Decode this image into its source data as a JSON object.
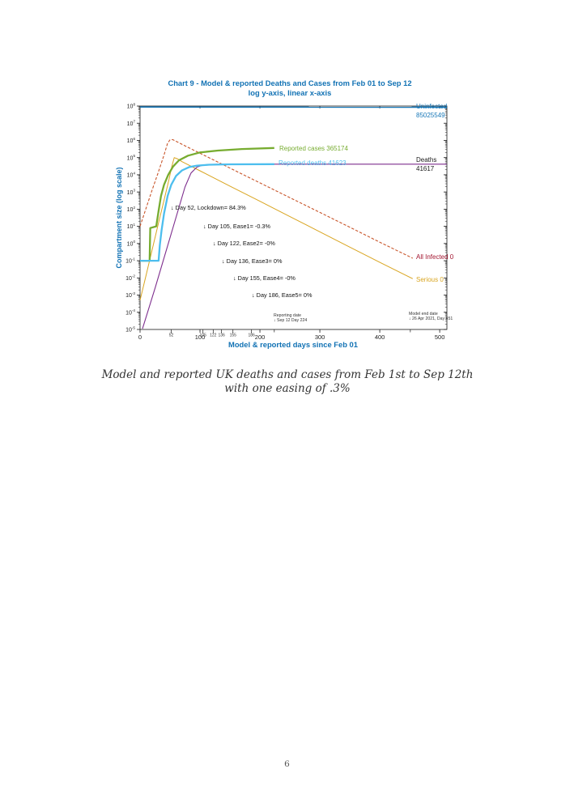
{
  "page": {
    "number": "6"
  },
  "caption": {
    "text": "Model and reported UK deaths and cases from Feb 1st to Sep 12th with one easing of .3%"
  },
  "chart_data": {
    "type": "line",
    "title": "Chart 9 - Model & reported Deaths and Cases from Feb 01 to Sep 12",
    "subtitle": "log y-axis, linear x-axis",
    "xlabel": "Model & reported days since Feb 01",
    "ylabel": "Compartment size (log scale)",
    "axis_text_color": "#1272b4",
    "tick_text_color": "#222222",
    "x_range": [
      0,
      512
    ],
    "log_range": [
      -5,
      8
    ],
    "x_ticks": [
      0,
      100,
      200,
      300,
      400,
      500
    ],
    "x_event_ticks": [
      52,
      105,
      122,
      136,
      155,
      186
    ],
    "x_extra_ticks": [
      224,
      451
    ],
    "y_tick_exponents": [
      8,
      7,
      6,
      5,
      4,
      3,
      2,
      1,
      0,
      -1,
      -2,
      -3,
      -4,
      -5
    ],
    "series": [
      {
        "id": "all-infected",
        "name": "All Infected",
        "end_value": 0,
        "color": "#c8552a",
        "width": 1.1,
        "dash": "3.5 2",
        "points": [
          [
            0,
            10
          ],
          [
            10,
            112
          ],
          [
            20,
            1260
          ],
          [
            30,
            12600
          ],
          [
            40,
            141000
          ],
          [
            46,
            708000
          ],
          [
            50,
            1070000
          ],
          [
            54,
            1122000
          ],
          [
            60,
            891000
          ],
          [
            80,
            398000
          ],
          [
            120,
            81000
          ],
          [
            160,
            16600
          ],
          [
            200,
            3390
          ],
          [
            250,
            468
          ],
          [
            300,
            65
          ],
          [
            350,
            8.9
          ],
          [
            400,
            1.2
          ],
          [
            455,
            0.14
          ]
        ]
      },
      {
        "id": "serious",
        "name": "Serious",
        "end_value": 0,
        "color": "#d9a521",
        "width": 1.0,
        "dash": "",
        "points": [
          [
            0,
            0.0005
          ],
          [
            10,
            0.014
          ],
          [
            20,
            0.41
          ],
          [
            30,
            12
          ],
          [
            40,
            330
          ],
          [
            48,
            4800
          ],
          [
            53,
            30000
          ],
          [
            57,
            100000
          ],
          [
            62,
            86000
          ],
          [
            70,
            58000
          ],
          [
            80,
            39000
          ],
          [
            100,
            17000
          ],
          [
            150,
            2200
          ],
          [
            200,
            290
          ],
          [
            250,
            37
          ],
          [
            300,
            4.8
          ],
          [
            350,
            0.62
          ],
          [
            400,
            0.08
          ],
          [
            455,
            0.009
          ]
        ]
      },
      {
        "id": "deaths-model",
        "name": "Deaths",
        "end_value": 41617,
        "color": "#7e2f8e",
        "width": 1.1,
        "dash": "",
        "points": [
          [
            4,
            1.1e-05
          ],
          [
            25,
            0.0025
          ],
          [
            45,
            0.56
          ],
          [
            60,
            33
          ],
          [
            75,
            1950
          ],
          [
            85,
            12600
          ],
          [
            95,
            28200
          ],
          [
            105,
            36500
          ],
          [
            120,
            40300
          ],
          [
            140,
            41300
          ],
          [
            180,
            41600
          ],
          [
            512,
            41617
          ]
        ]
      },
      {
        "id": "reported-cases",
        "name": "Reported cases",
        "end_value": 365174,
        "color": "#77ac30",
        "width": 2.3,
        "dash": "",
        "points": [
          [
            2,
            0.1
          ],
          [
            16,
            0.1
          ],
          [
            17,
            8
          ],
          [
            27,
            10
          ],
          [
            31,
            80
          ],
          [
            35,
            600
          ],
          [
            40,
            2600
          ],
          [
            47,
            10000
          ],
          [
            55,
            30000
          ],
          [
            65,
            70000
          ],
          [
            80,
            130000
          ],
          [
            100,
            200000
          ],
          [
            130,
            258000
          ],
          [
            170,
            315000
          ],
          [
            224,
            365174
          ]
        ]
      },
      {
        "id": "reported-deaths",
        "name": "Reported deaths",
        "end_value": 41623,
        "color": "#4dbeee",
        "width": 2.3,
        "dash": "",
        "points": [
          [
            0,
            0.1
          ],
          [
            31,
            0.1
          ],
          [
            33,
            0.8
          ],
          [
            36,
            6
          ],
          [
            40,
            55
          ],
          [
            46,
            600
          ],
          [
            52,
            2600
          ],
          [
            60,
            8500
          ],
          [
            70,
            18000
          ],
          [
            82,
            28000
          ],
          [
            95,
            34000
          ],
          [
            115,
            38500
          ],
          [
            150,
            40800
          ],
          [
            224,
            41623
          ]
        ]
      },
      {
        "id": "uninfected",
        "name": "Uninfected",
        "end_value": 85025549,
        "color": "#1878b8",
        "width": 1.6,
        "dash": "",
        "points": [
          [
            0,
            88000000
          ],
          [
            512,
            85025549
          ]
        ]
      }
    ],
    "annotations": [
      {
        "day": 52,
        "text": "↓ Day 52, Lockdown= 84.3%"
      },
      {
        "day": 105,
        "text": "↓ Day 105, Ease1= -0.3%"
      },
      {
        "day": 122,
        "text": "↓ Day 122, Ease2= -0%"
      },
      {
        "day": 136,
        "text": "↓ Day 136, Ease3= 0%"
      },
      {
        "day": 155,
        "text": "↓ Day 155, Ease4= -0%"
      },
      {
        "day": 186,
        "text": "↓ Day 186, Ease5= 0%"
      }
    ],
    "date_notes": [
      {
        "day": 224,
        "lines": [
          "Reporting date",
          "↓ Sep 12 Day 224"
        ]
      },
      {
        "day": 451,
        "lines": [
          "Model end date",
          "↓ 26 Apr 2021, Day 451"
        ]
      }
    ],
    "curve_labels": [
      {
        "text": "Reported cases 365174",
        "color": "#77ac30"
      },
      {
        "text": "Reported deaths 41623",
        "color": "#4dbeee"
      }
    ],
    "right_labels": [
      {
        "lines": [
          "Uninfected",
          "85025549"
        ],
        "color": "#1878b8"
      },
      {
        "lines": [
          "Deaths",
          "41617"
        ],
        "color": "#1a1a1a"
      },
      {
        "lines": [
          "All Infected 0"
        ],
        "color": "#a2142f"
      },
      {
        "lines": [
          "Serious 0"
        ],
        "color": "#d9a521"
      }
    ]
  }
}
